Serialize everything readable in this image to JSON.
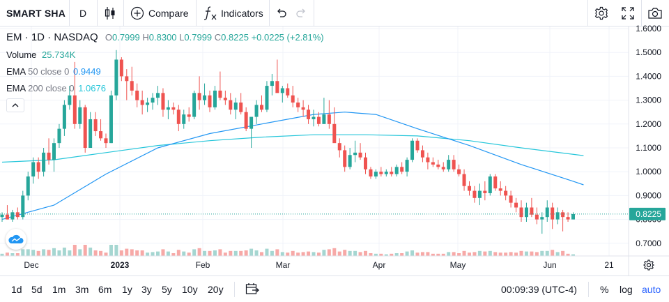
{
  "toolbar": {
    "symbol": "SMART SHA",
    "interval": "D",
    "compare_label": "Compare",
    "indicators_label": "Indicators",
    "icons": [
      "candles-icon",
      "plus-circle-icon",
      "fx-icon",
      "undo-icon",
      "redo-icon",
      "settings-icon",
      "fullscreen-icon",
      "camera-icon"
    ]
  },
  "legend": {
    "title": "EM · 1D · NASDAQ",
    "open_label": "O",
    "open": "0.7999",
    "high_label": "H",
    "high": "0.8300",
    "low_label": "L",
    "low": "0.7999",
    "close_label": "C",
    "close": "0.8225",
    "change": "+0.0225 (+2.81%)",
    "volume_label": "Volume",
    "volume": "25.734K",
    "ema50_label": "EMA",
    "ema50_params": "50 close 0",
    "ema50_value": "0.9449",
    "ema200_label": "EMA",
    "ema200_params": "200 close 0",
    "ema200_value": "1.0676"
  },
  "colors": {
    "up": "#26a69a",
    "down": "#ef5350",
    "ema50": "#2196f3",
    "ema200": "#26c6da",
    "vol_up": "#a5d6d1",
    "vol_down": "#f7a9a7",
    "price_label_bg": "#26a69a"
  },
  "price_axis": {
    "labels": [
      "1.6000",
      "1.5000",
      "1.4000",
      "1.3000",
      "1.2000",
      "1.1000",
      "1.0000",
      "0.9000",
      "0.8000",
      "0.7000"
    ],
    "current_label": "0.8225"
  },
  "time_axis": {
    "labels": [
      "Dec",
      "2023",
      "Feb",
      "Mar",
      "Apr",
      "May",
      "Jun",
      "21"
    ]
  },
  "bottom_bar": {
    "ranges": [
      "1d",
      "5d",
      "1m",
      "3m",
      "6m",
      "1y",
      "3y",
      "5y",
      "10y",
      "20y"
    ],
    "time": "00:09:39 (UTC-4)",
    "percent_label": "%",
    "log_label": "log",
    "auto_label": "auto"
  },
  "chart_data": {
    "type": "candlestick",
    "price_range": [
      0.67,
      1.6
    ],
    "grid": true,
    "candles_ohl_c": [
      [
        0.81,
        0.83,
        0.79,
        0.82
      ],
      [
        0.82,
        0.86,
        0.8,
        0.8
      ],
      [
        0.8,
        0.84,
        0.79,
        0.83
      ],
      [
        0.83,
        0.85,
        0.8,
        0.81
      ],
      [
        0.81,
        0.92,
        0.8,
        0.9
      ],
      [
        0.9,
        1.0,
        0.88,
        0.98
      ],
      [
        0.98,
        1.06,
        0.95,
        1.04
      ],
      [
        1.04,
        1.06,
        0.97,
        1.0
      ],
      [
        1.0,
        1.1,
        0.98,
        1.08
      ],
      [
        1.08,
        1.14,
        1.03,
        1.05
      ],
      [
        1.05,
        1.14,
        1.0,
        1.12
      ],
      [
        1.12,
        1.2,
        1.1,
        1.18
      ],
      [
        1.18,
        1.3,
        1.15,
        1.28
      ],
      [
        1.28,
        1.36,
        1.26,
        1.32
      ],
      [
        1.32,
        1.46,
        1.18,
        1.2
      ],
      [
        1.2,
        1.3,
        1.18,
        1.27
      ],
      [
        1.27,
        1.28,
        1.08,
        1.1
      ],
      [
        1.1,
        1.25,
        1.1,
        1.22
      ],
      [
        1.22,
        1.25,
        1.15,
        1.17
      ],
      [
        1.17,
        1.22,
        1.13,
        1.14
      ],
      [
        1.14,
        1.16,
        1.1,
        1.12
      ],
      [
        1.12,
        1.34,
        1.12,
        1.32
      ],
      [
        1.32,
        1.51,
        1.3,
        1.47
      ],
      [
        1.47,
        1.48,
        1.38,
        1.4
      ],
      [
        1.4,
        1.43,
        1.3,
        1.38
      ],
      [
        1.38,
        1.44,
        1.32,
        1.34
      ],
      [
        1.34,
        1.37,
        1.27,
        1.3
      ],
      [
        1.3,
        1.34,
        1.24,
        1.28
      ],
      [
        1.28,
        1.31,
        1.25,
        1.29
      ],
      [
        1.29,
        1.33,
        1.26,
        1.31
      ],
      [
        1.31,
        1.36,
        1.28,
        1.33
      ],
      [
        1.33,
        1.35,
        1.23,
        1.26
      ],
      [
        1.26,
        1.3,
        1.22,
        1.27
      ],
      [
        1.27,
        1.29,
        1.24,
        1.26
      ],
      [
        1.26,
        1.28,
        1.17,
        1.2
      ],
      [
        1.2,
        1.26,
        1.18,
        1.24
      ],
      [
        1.24,
        1.27,
        1.21,
        1.23
      ],
      [
        1.23,
        1.34,
        1.22,
        1.33
      ],
      [
        1.33,
        1.4,
        1.26,
        1.3
      ],
      [
        1.3,
        1.37,
        1.28,
        1.32
      ],
      [
        1.32,
        1.34,
        1.25,
        1.27
      ],
      [
        1.27,
        1.36,
        1.26,
        1.34
      ],
      [
        1.34,
        1.42,
        1.3,
        1.31
      ],
      [
        1.31,
        1.34,
        1.28,
        1.3
      ],
      [
        1.3,
        1.33,
        1.24,
        1.26
      ],
      [
        1.26,
        1.31,
        1.22,
        1.29
      ],
      [
        1.29,
        1.33,
        1.24,
        1.25
      ],
      [
        1.25,
        1.27,
        1.17,
        1.18
      ],
      [
        1.18,
        1.23,
        1.1,
        1.23
      ],
      [
        1.23,
        1.3,
        1.2,
        1.28
      ],
      [
        1.28,
        1.32,
        1.25,
        1.26
      ],
      [
        1.26,
        1.38,
        1.25,
        1.36
      ],
      [
        1.36,
        1.41,
        1.32,
        1.38
      ],
      [
        1.38,
        1.47,
        1.35,
        1.33
      ],
      [
        1.33,
        1.36,
        1.29,
        1.35
      ],
      [
        1.35,
        1.37,
        1.31,
        1.32
      ],
      [
        1.32,
        1.36,
        1.27,
        1.29
      ],
      [
        1.29,
        1.31,
        1.25,
        1.27
      ],
      [
        1.27,
        1.3,
        1.23,
        1.26
      ],
      [
        1.26,
        1.28,
        1.2,
        1.22
      ],
      [
        1.22,
        1.26,
        1.19,
        1.23
      ],
      [
        1.23,
        1.25,
        1.19,
        1.2
      ],
      [
        1.2,
        1.31,
        1.2,
        1.24
      ],
      [
        1.24,
        1.3,
        1.18,
        1.2
      ],
      [
        1.2,
        1.27,
        1.13,
        1.12
      ],
      [
        1.12,
        1.14,
        1.06,
        1.09
      ],
      [
        1.09,
        1.11,
        1.0,
        1.02
      ],
      [
        1.02,
        1.1,
        1.01,
        1.07
      ],
      [
        1.07,
        1.13,
        1.04,
        1.08
      ],
      [
        1.08,
        1.12,
        1.05,
        1.06
      ],
      [
        1.06,
        1.08,
        0.99,
        1.01
      ],
      [
        1.01,
        1.02,
        0.97,
        0.98
      ],
      [
        0.98,
        1.01,
        0.97,
        1.0
      ],
      [
        1.0,
        1.02,
        0.98,
        0.99
      ],
      [
        0.99,
        1.01,
        0.98,
        1.0
      ],
      [
        1.0,
        1.02,
        0.98,
        0.99
      ],
      [
        0.99,
        1.03,
        0.98,
        1.02
      ],
      [
        1.02,
        1.04,
        0.99,
        1.0
      ],
      [
        1.0,
        1.06,
        0.98,
        1.05
      ],
      [
        1.05,
        1.14,
        1.04,
        1.13
      ],
      [
        1.13,
        1.14,
        1.08,
        1.09
      ],
      [
        1.09,
        1.11,
        1.04,
        1.06
      ],
      [
        1.06,
        1.08,
        1.01,
        1.04
      ],
      [
        1.04,
        1.06,
        1.02,
        1.03
      ],
      [
        1.03,
        1.05,
        1.01,
        1.02
      ],
      [
        1.02,
        1.04,
        1.0,
        1.01
      ],
      [
        1.01,
        1.07,
        1.0,
        1.05
      ],
      [
        1.05,
        1.07,
        1.0,
        1.01
      ],
      [
        1.01,
        1.03,
        0.98,
        0.99
      ],
      [
        0.99,
        1.01,
        0.92,
        0.94
      ],
      [
        0.94,
        0.96,
        0.9,
        0.92
      ],
      [
        0.92,
        0.94,
        0.87,
        0.89
      ],
      [
        0.89,
        0.95,
        0.86,
        0.92
      ],
      [
        0.92,
        0.96,
        0.88,
        0.91
      ],
      [
        0.91,
        0.99,
        0.9,
        0.98
      ],
      [
        0.98,
        0.99,
        0.92,
        0.93
      ],
      [
        0.93,
        0.96,
        0.9,
        0.92
      ],
      [
        0.92,
        0.94,
        0.88,
        0.9
      ],
      [
        0.9,
        0.92,
        0.85,
        0.87
      ],
      [
        0.87,
        0.89,
        0.83,
        0.85
      ],
      [
        0.85,
        0.88,
        0.79,
        0.81
      ],
      [
        0.81,
        0.87,
        0.79,
        0.85
      ],
      [
        0.85,
        0.89,
        0.81,
        0.82
      ],
      [
        0.82,
        0.85,
        0.78,
        0.8
      ],
      [
        0.8,
        0.83,
        0.74,
        0.81
      ],
      [
        0.81,
        0.88,
        0.79,
        0.85
      ],
      [
        0.85,
        0.87,
        0.76,
        0.8
      ],
      [
        0.8,
        0.85,
        0.78,
        0.83
      ],
      [
        0.83,
        0.84,
        0.75,
        0.81
      ],
      [
        0.81,
        0.83,
        0.79,
        0.8
      ],
      [
        0.8,
        0.83,
        0.8,
        0.8225
      ]
    ],
    "ema50": [
      [
        0,
        0.8
      ],
      [
        10,
        0.86
      ],
      [
        20,
        0.99
      ],
      [
        30,
        1.1
      ],
      [
        40,
        1.16
      ],
      [
        50,
        1.2
      ],
      [
        60,
        1.24
      ],
      [
        66,
        1.25
      ],
      [
        72,
        1.24
      ],
      [
        80,
        1.18
      ],
      [
        90,
        1.11
      ],
      [
        100,
        1.03
      ],
      [
        110,
        0.96
      ],
      [
        112,
        0.945
      ]
    ],
    "ema200": [
      [
        0,
        1.04
      ],
      [
        10,
        1.05
      ],
      [
        20,
        1.08
      ],
      [
        30,
        1.11
      ],
      [
        40,
        1.13
      ],
      [
        50,
        1.145
      ],
      [
        60,
        1.155
      ],
      [
        70,
        1.155
      ],
      [
        80,
        1.15
      ],
      [
        90,
        1.13
      ],
      [
        100,
        1.1
      ],
      [
        112,
        1.0676
      ]
    ]
  }
}
